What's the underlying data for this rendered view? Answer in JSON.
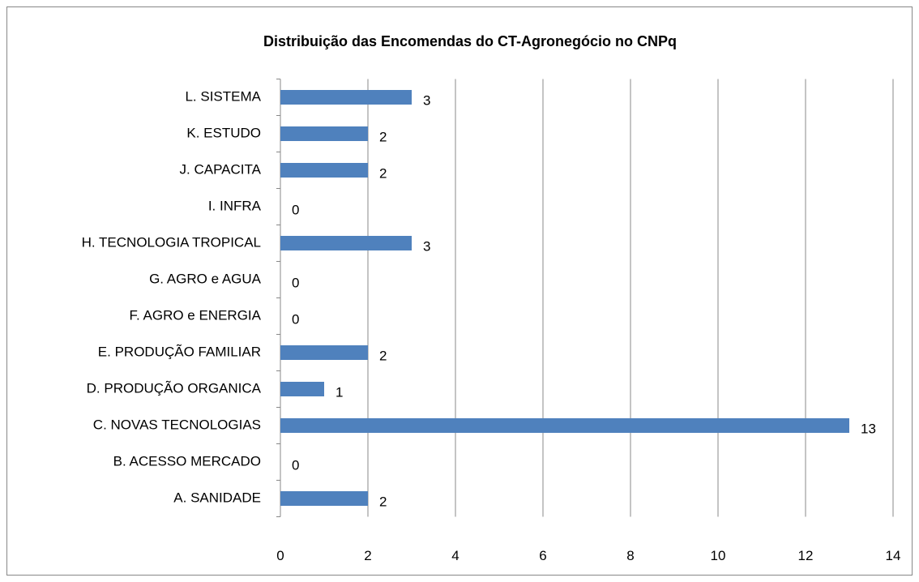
{
  "chart_data": {
    "type": "bar",
    "orientation": "horizontal",
    "title": "Distribuição das Encomendas do CT-Agronegócio  no CNPq",
    "categories": [
      "A. SANIDADE",
      "B. ACESSO MERCADO",
      "C. NOVAS TECNOLOGIAS",
      "D. PRODUÇÃO ORGANICA",
      "E. PRODUÇÃO FAMILIAR",
      "F. AGRO e ENERGIA",
      "G. AGRO e AGUA",
      "H. TECNOLOGIA TROPICAL",
      "I. INFRA",
      "J. CAPACITA",
      "K. ESTUDO",
      "L. SISTEMA"
    ],
    "values": [
      2,
      0,
      13,
      1,
      2,
      0,
      0,
      3,
      0,
      2,
      2,
      3
    ],
    "color": "#4f81bd",
    "xlim": [
      0,
      14
    ],
    "xticks": [
      0,
      2,
      4,
      6,
      8,
      10,
      12,
      14
    ],
    "grid": true
  }
}
